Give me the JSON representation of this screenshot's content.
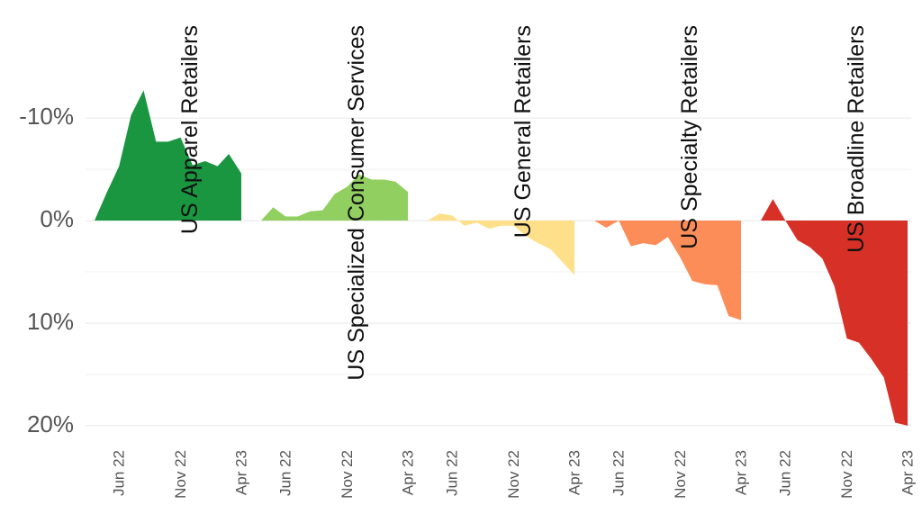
{
  "chart_data": {
    "type": "area",
    "title": "",
    "xlabel": "",
    "ylabel": "",
    "y_axis": {
      "inverted": true,
      "range": [
        -0.18,
        0.215
      ],
      "ticks": [
        -0.1,
        0,
        0.1,
        0.2
      ],
      "tick_labels": [
        "-10%",
        "0%",
        "10%",
        "20%"
      ]
    },
    "x_axis": {
      "ticks": [
        "2022-06-01",
        "2022-11-01",
        "2023-04-01"
      ],
      "tick_labels": [
        "Jun 22",
        "Nov 22",
        "Apr 23"
      ]
    },
    "grid": true,
    "legend": "none",
    "panels": [
      {
        "name": "US Apparel Retailers",
        "color": "#1a9641",
        "x": [
          "2022-04-01",
          "2022-05-01",
          "2022-06-01",
          "2022-07-01",
          "2022-08-01",
          "2022-09-01",
          "2022-10-01",
          "2022-11-01",
          "2022-12-01",
          "2023-01-01",
          "2023-02-01",
          "2023-03-01",
          "2023-04-01"
        ],
        "values": [
          0,
          -0.027,
          -0.053,
          -0.103,
          -0.127,
          -0.077,
          -0.077,
          -0.081,
          -0.054,
          -0.058,
          -0.053,
          -0.065,
          -0.046
        ]
      },
      {
        "name": "US Specialized Consumer Services",
        "color": "#91cf60",
        "x": [
          "2022-04-01",
          "2022-05-01",
          "2022-06-01",
          "2022-07-01",
          "2022-08-01",
          "2022-09-01",
          "2022-10-01",
          "2022-11-01",
          "2022-12-01",
          "2023-01-01",
          "2023-02-01",
          "2023-03-01",
          "2023-04-01"
        ],
        "values": [
          0,
          -0.013,
          -0.004,
          -0.004,
          -0.009,
          -0.01,
          -0.026,
          -0.033,
          -0.045,
          -0.04,
          -0.04,
          -0.038,
          -0.028
        ]
      },
      {
        "name": "US General Retailers",
        "color": "#fee08b",
        "x": [
          "2022-04-01",
          "2022-05-01",
          "2022-06-01",
          "2022-07-01",
          "2022-08-01",
          "2022-09-01",
          "2022-10-01",
          "2022-11-01",
          "2022-12-01",
          "2023-01-01",
          "2023-02-01",
          "2023-03-01",
          "2023-04-01"
        ],
        "values": [
          0,
          -0.007,
          -0.005,
          0.005,
          0.002,
          0.008,
          0.005,
          0.005,
          0.015,
          0.022,
          0.028,
          0.04,
          0.053
        ]
      },
      {
        "name": "US Specialty Retailers",
        "color": "#fc8d59",
        "x": [
          "2022-04-01",
          "2022-05-01",
          "2022-06-01",
          "2022-07-01",
          "2022-08-01",
          "2022-09-01",
          "2022-10-01",
          "2022-11-01",
          "2022-12-01",
          "2023-01-01",
          "2023-02-01",
          "2023-03-01",
          "2023-04-01"
        ],
        "values": [
          0,
          0.007,
          0,
          0.025,
          0.022,
          0.024,
          0.016,
          0.036,
          0.059,
          0.062,
          0.063,
          0.093,
          0.097
        ]
      },
      {
        "name": "US Broadline Retailers",
        "color": "#d73027",
        "x": [
          "2022-04-01",
          "2022-05-01",
          "2022-06-01",
          "2022-07-01",
          "2022-08-01",
          "2022-09-01",
          "2022-10-01",
          "2022-11-01",
          "2022-12-01",
          "2023-01-01",
          "2023-02-01",
          "2023-03-01",
          "2023-04-01"
        ],
        "values": [
          0,
          -0.021,
          0,
          0.019,
          0.026,
          0.037,
          0.064,
          0.115,
          0.119,
          0.135,
          0.153,
          0.197,
          0.2
        ]
      }
    ]
  }
}
